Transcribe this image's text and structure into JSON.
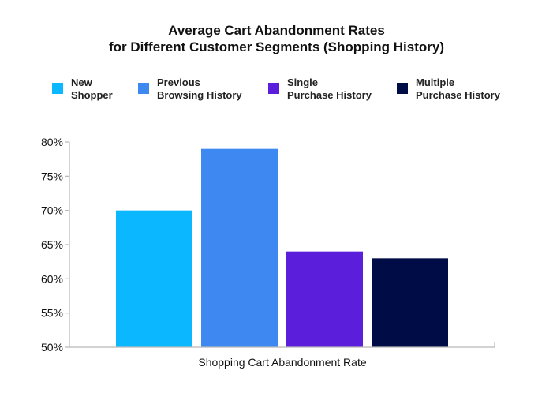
{
  "chart_data": {
    "type": "bar",
    "title_lines": [
      "Average Cart Abandonment Rates",
      "for Different Customer Segments (Shopping History)"
    ],
    "xlabel": "Shopping Cart Abandonment Rate",
    "ylabel": "",
    "categories": [
      "Shopping Cart Abandonment Rate"
    ],
    "series": [
      {
        "name": "New\nShopper",
        "values": [
          70
        ],
        "color": "#0bb8ff"
      },
      {
        "name": "Previous\nBrowsing History",
        "values": [
          79
        ],
        "color": "#3e88f2"
      },
      {
        "name": "Single\nPurchase History",
        "values": [
          64
        ],
        "color": "#5b1fdc"
      },
      {
        "name": "Multiple\nPurchase History",
        "values": [
          63
        ],
        "color": "#000c45"
      }
    ],
    "ylim": [
      50,
      80
    ],
    "yticks": [
      "50%",
      "55%",
      "60%",
      "65%",
      "70%",
      "75%",
      "80%"
    ],
    "ytick_values": [
      50,
      55,
      60,
      65,
      70,
      75,
      80
    ],
    "grid": false,
    "legend_position": "top"
  }
}
